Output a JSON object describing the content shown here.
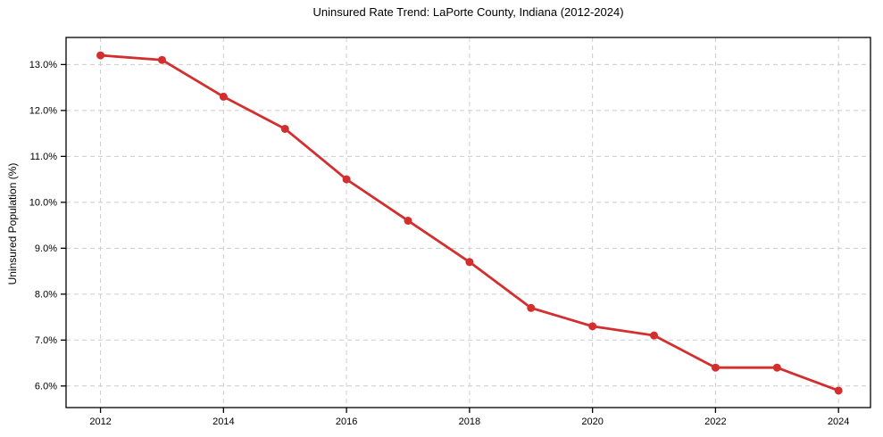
{
  "chart_data": {
    "type": "line",
    "title": "Uninsured Rate Trend: LaPorte County, Indiana (2012-2024)",
    "xlabel": "",
    "ylabel": "Uninsured Population (%)",
    "x": [
      2012,
      2013,
      2014,
      2015,
      2016,
      2017,
      2018,
      2019,
      2020,
      2021,
      2022,
      2023,
      2024
    ],
    "series": [
      {
        "name": "Uninsured rate",
        "values": [
          13.2,
          13.1,
          12.3,
          11.6,
          10.5,
          9.6,
          8.7,
          7.7,
          7.3,
          7.1,
          6.4,
          6.4,
          5.9
        ]
      }
    ],
    "x_ticks": [
      2012,
      2014,
      2016,
      2018,
      2020,
      2022,
      2024
    ],
    "x_tick_labels": [
      "2012",
      "2014",
      "2016",
      "2018",
      "2020",
      "2022",
      "2024"
    ],
    "y_ticks": [
      6.0,
      7.0,
      8.0,
      9.0,
      10.0,
      11.0,
      12.0,
      13.0
    ],
    "y_tick_labels": [
      "6.0%",
      "7.0%",
      "8.0%",
      "9.0%",
      "10.0%",
      "11.0%",
      "12.0%",
      "13.0%"
    ],
    "xlim": [
      2011.44,
      2024.52
    ],
    "ylim": [
      5.53,
      13.59
    ],
    "grid": true,
    "legend": false,
    "marker": "circle",
    "colors": {
      "line": "#d32f2f",
      "marker": "#d32f2f",
      "grid": "#cccccc",
      "spine": "#000000",
      "tick": "#000000",
      "text": "#000000",
      "background": "#ffffff"
    }
  }
}
